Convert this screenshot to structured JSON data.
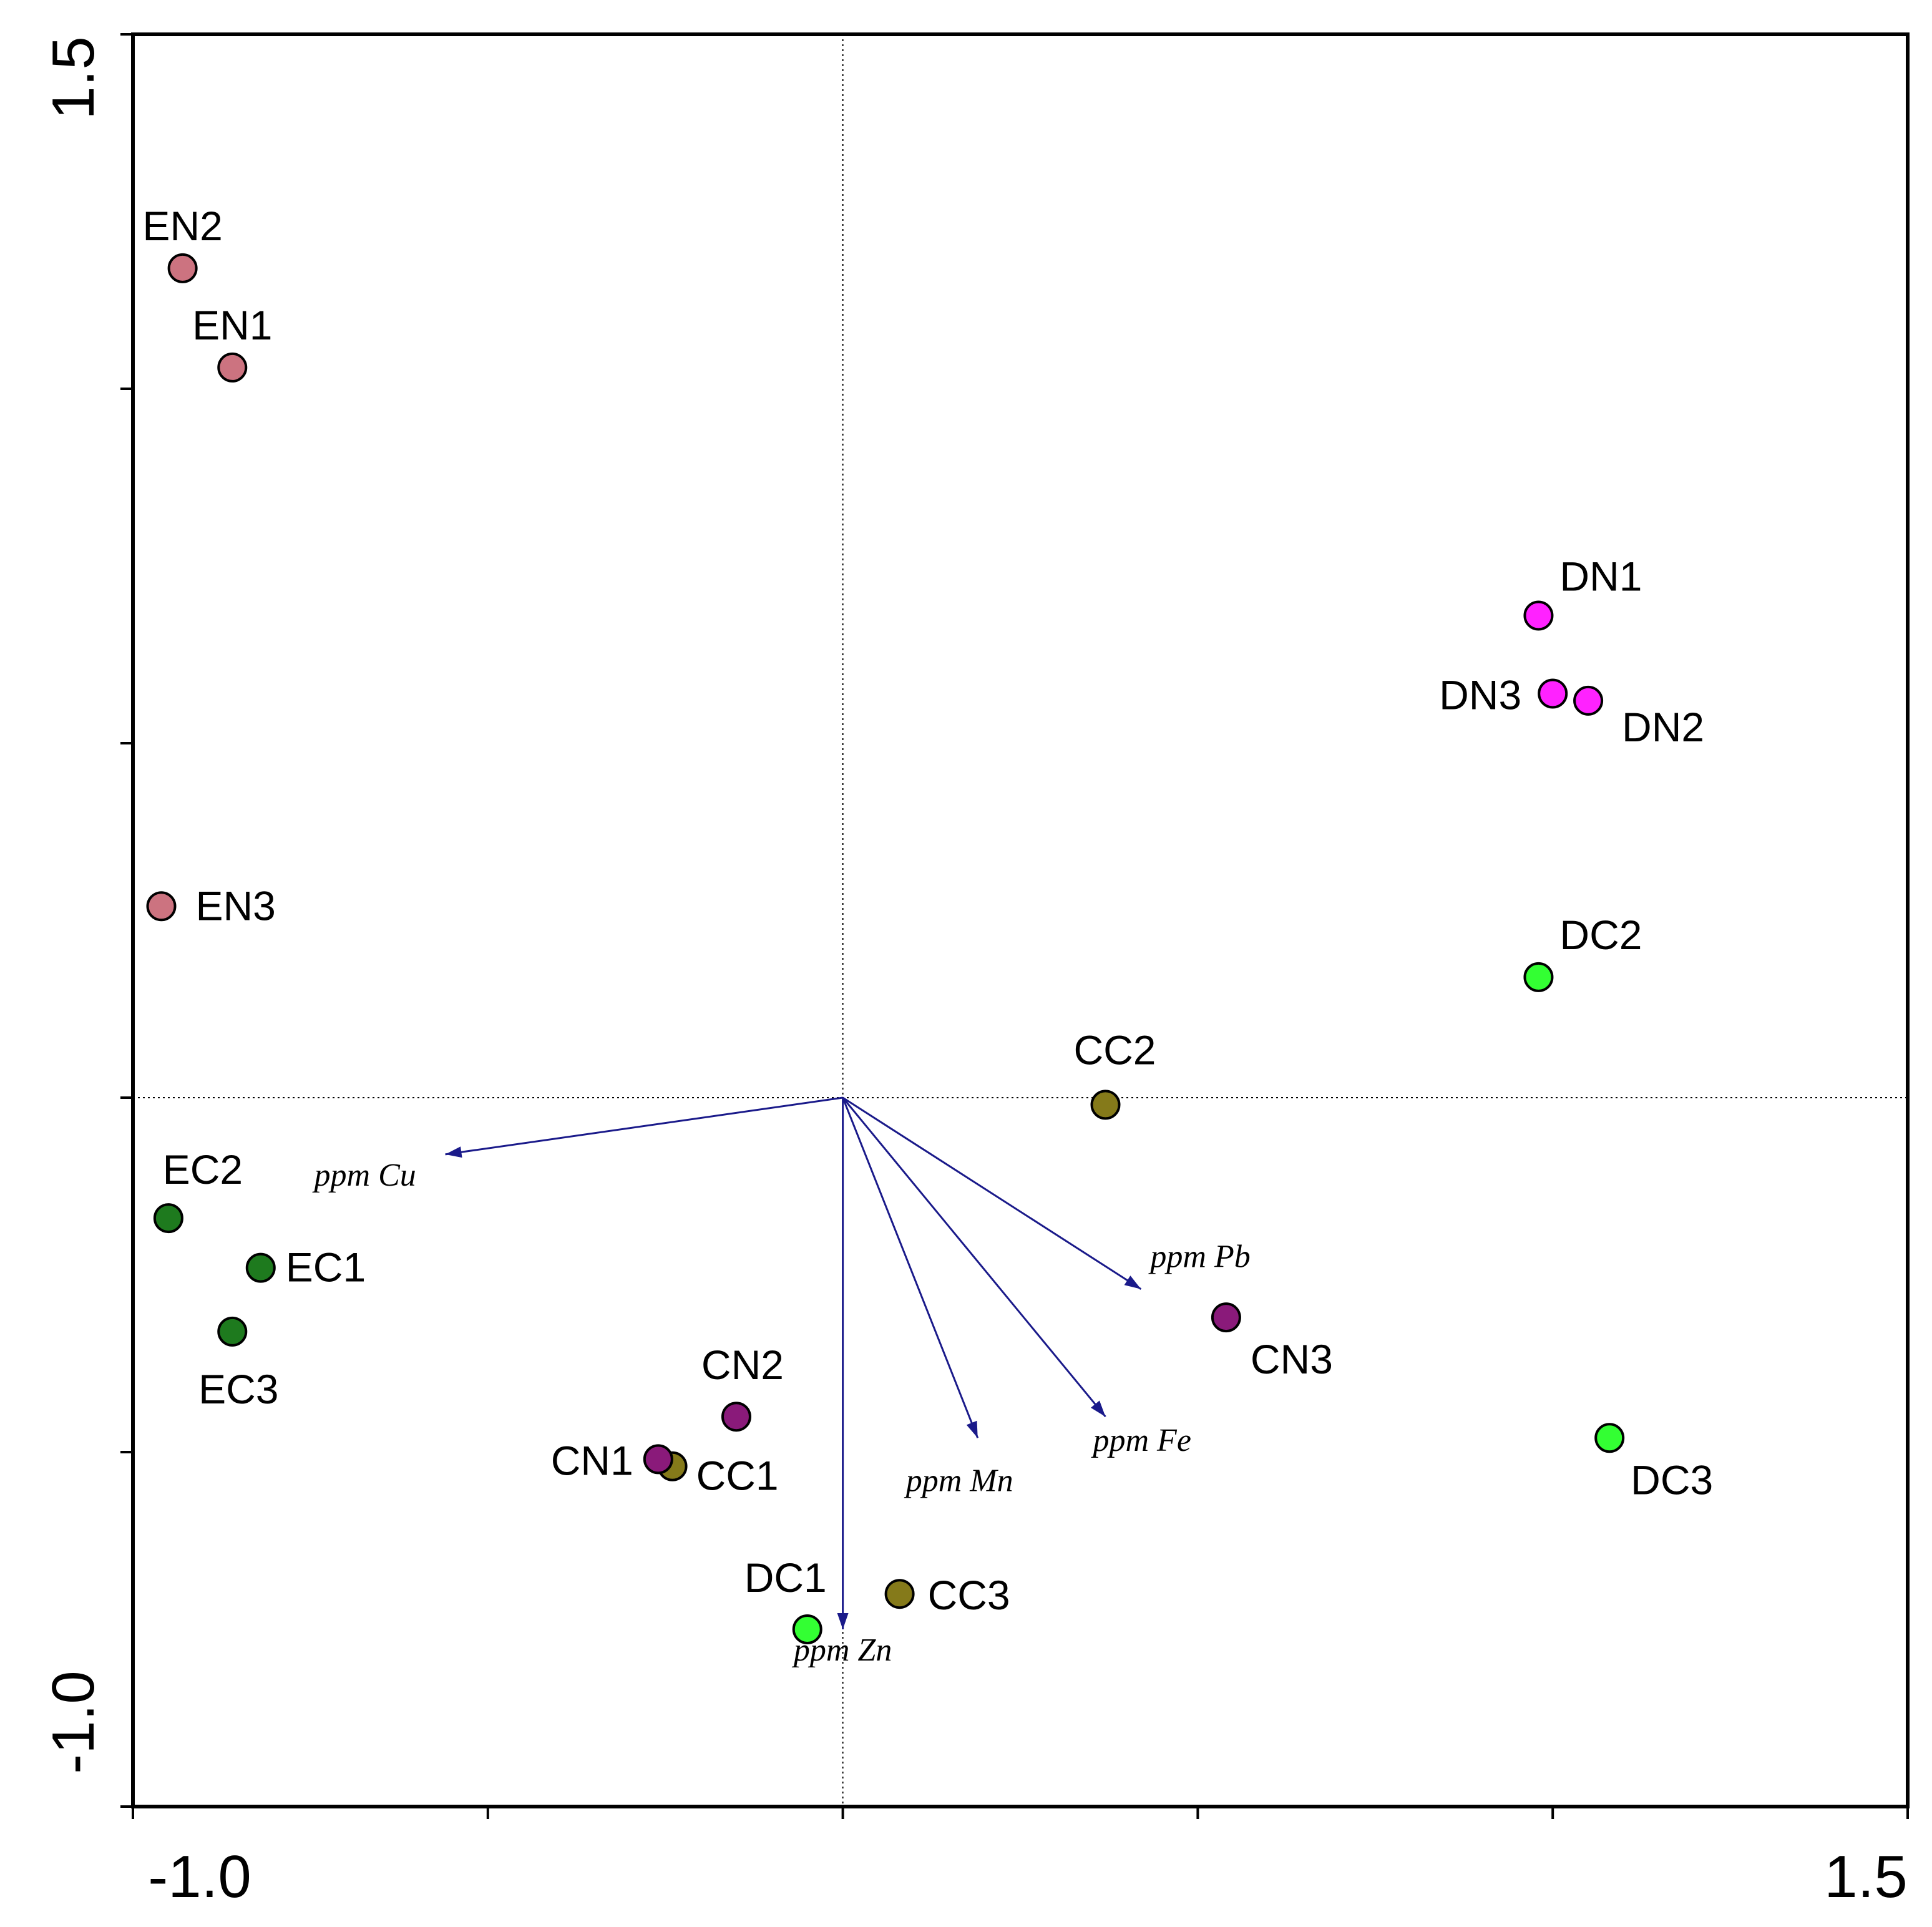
{
  "chart_data": {
    "type": "scatter",
    "title": "",
    "xlabel": "",
    "ylabel": "",
    "xlim": [
      -1.0,
      1.5
    ],
    "ylim": [
      -1.0,
      1.5
    ],
    "x_tick_labels": [
      "-1.0",
      "1.5"
    ],
    "y_tick_labels": [
      "-1.0",
      "1.5"
    ],
    "reference_lines": {
      "x": 0,
      "y": 0
    },
    "colors": {
      "EN": "#cc7380",
      "EC": "#1e7a1e",
      "DN": "#ff22ff",
      "DC": "#33ff33",
      "CN": "#8a1a7a",
      "CC": "#857a1a",
      "vector": "#1a1a8a"
    },
    "points": [
      {
        "label": "EN2",
        "x": -0.93,
        "y": 1.17,
        "group": "EN"
      },
      {
        "label": "EN1",
        "x": -0.86,
        "y": 1.03,
        "group": "EN"
      },
      {
        "label": "EN3",
        "x": -0.96,
        "y": 0.27,
        "group": "EN"
      },
      {
        "label": "EC2",
        "x": -0.95,
        "y": -0.17,
        "group": "EC"
      },
      {
        "label": "EC1",
        "x": -0.82,
        "y": -0.24,
        "group": "EC"
      },
      {
        "label": "EC3",
        "x": -0.86,
        "y": -0.33,
        "group": "EC"
      },
      {
        "label": "DN1",
        "x": 0.98,
        "y": 0.68,
        "group": "DN"
      },
      {
        "label": "DN3",
        "x": 1.0,
        "y": 0.57,
        "group": "DN"
      },
      {
        "label": "DN2",
        "x": 1.05,
        "y": 0.56,
        "group": "DN"
      },
      {
        "label": "DC2",
        "x": 0.98,
        "y": 0.17,
        "group": "DC"
      },
      {
        "label": "DC3",
        "x": 1.08,
        "y": -0.48,
        "group": "DC"
      },
      {
        "label": "DC1",
        "x": -0.05,
        "y": -0.75,
        "group": "DC"
      },
      {
        "label": "CC2",
        "x": 0.37,
        "y": -0.01,
        "group": "CC"
      },
      {
        "label": "CC1",
        "x": -0.24,
        "y": -0.52,
        "group": "CC"
      },
      {
        "label": "CC3",
        "x": 0.08,
        "y": -0.7,
        "group": "CC"
      },
      {
        "label": "CN3",
        "x": 0.54,
        "y": -0.31,
        "group": "CN"
      },
      {
        "label": "CN2",
        "x": -0.15,
        "y": -0.45,
        "group": "CN"
      },
      {
        "label": "CN1",
        "x": -0.26,
        "y": -0.51,
        "group": "CN"
      }
    ],
    "vectors": [
      {
        "label": "ppm Cu",
        "x": -0.56,
        "y": -0.08
      },
      {
        "label": "ppm Pb",
        "x": 0.42,
        "y": -0.27
      },
      {
        "label": "ppm Fe",
        "x": 0.37,
        "y": -0.45
      },
      {
        "label": "ppm Mn",
        "x": 0.19,
        "y": -0.48
      },
      {
        "label": "ppm Zn",
        "x": 0.0,
        "y": -0.75
      }
    ]
  }
}
